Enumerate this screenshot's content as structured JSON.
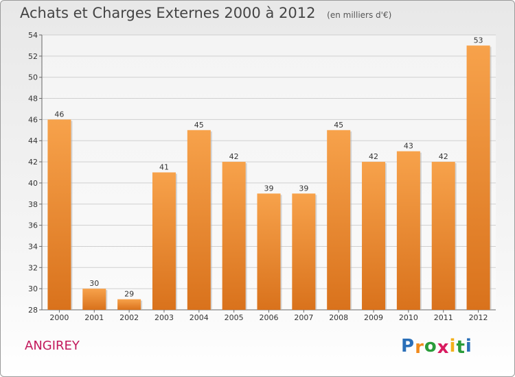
{
  "header": {
    "title": "Achats et Charges Externes 2000 à 2012",
    "subtitle": "(en milliers d'€)"
  },
  "footer": {
    "city": "ANGIREY",
    "logo_letters": [
      "P",
      "r",
      "o",
      "x",
      "i",
      "t",
      "i"
    ],
    "logo_colors": [
      "#2a6fb8",
      "#f08a1c",
      "#2a9c3a",
      "#d81b60",
      "#f3b01b",
      "#2a9c3a",
      "#2a6fb8"
    ]
  },
  "colors": {
    "bar_top": "#f7a24b",
    "bar_bottom": "#d9721c",
    "grid": "#cfcfcf"
  },
  "chart_data": {
    "type": "bar",
    "title": "Achats et Charges Externes 2000 à 2012",
    "subtitle": "(en milliers d'€)",
    "categories": [
      "2000",
      "2001",
      "2002",
      "2003",
      "2004",
      "2005",
      "2006",
      "2007",
      "2008",
      "2009",
      "2010",
      "2011",
      "2012"
    ],
    "values": [
      46,
      30,
      29,
      41,
      45,
      42,
      39,
      39,
      45,
      42,
      43,
      42,
      53
    ],
    "ylim": [
      28,
      54
    ],
    "yticks": [
      28,
      30,
      32,
      34,
      36,
      38,
      40,
      42,
      44,
      46,
      48,
      50,
      52,
      54
    ],
    "grid": true
  }
}
